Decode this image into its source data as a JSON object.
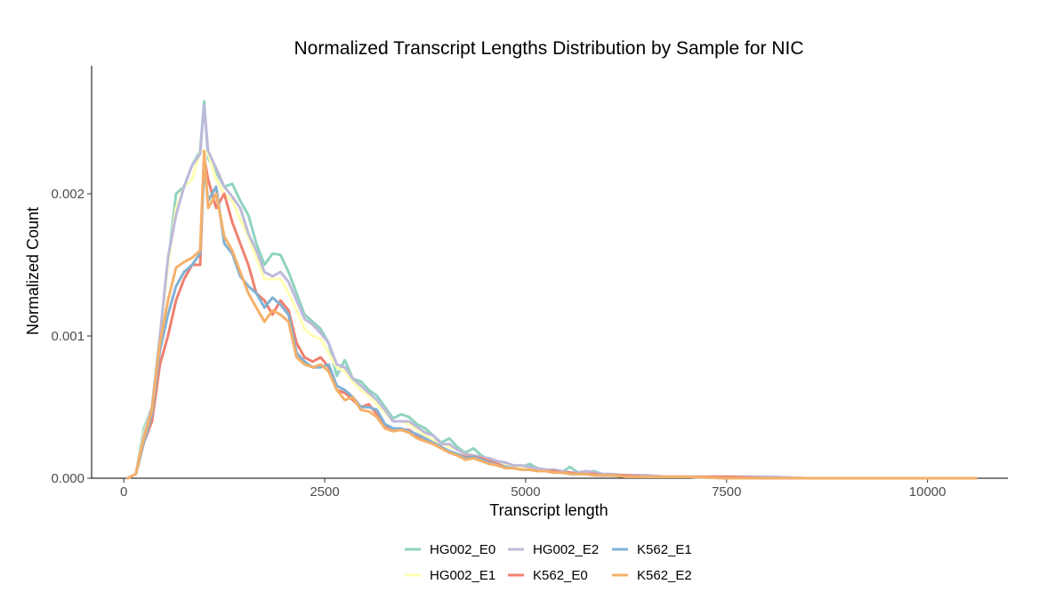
{
  "chart_data": {
    "type": "line",
    "title": "Normalized Transcript Lengths Distribution by Sample for NIC",
    "xlabel": "Transcript length",
    "ylabel": "Normalized Count",
    "xlim": [
      -400,
      11000
    ],
    "ylim": [
      0,
      0.0029
    ],
    "x_ticks": [
      0,
      2500,
      5000,
      7500,
      10000
    ],
    "x_tick_labels": [
      "0",
      "2500",
      "5000",
      "7500",
      "10000"
    ],
    "y_ticks": [
      0,
      0.001,
      0.002
    ],
    "y_tick_labels": [
      "0.000",
      "0.001",
      "0.002"
    ],
    "grid": false,
    "legend_position": "bottom",
    "x": [
      50,
      150,
      250,
      350,
      450,
      550,
      650,
      750,
      850,
      950,
      1000,
      1050,
      1150,
      1250,
      1350,
      1450,
      1550,
      1650,
      1750,
      1850,
      1950,
      2050,
      2150,
      2250,
      2350,
      2450,
      2550,
      2650,
      2750,
      2850,
      2950,
      3050,
      3150,
      3250,
      3350,
      3450,
      3550,
      3650,
      3750,
      3850,
      3950,
      4050,
      4150,
      4250,
      4350,
      4450,
      4550,
      4650,
      4750,
      4850,
      4950,
      5050,
      5150,
      5250,
      5350,
      5450,
      5550,
      5650,
      5750,
      5850,
      5950,
      6050,
      6250,
      6500,
      6750,
      7000,
      7500,
      8000,
      8500,
      9000,
      9500,
      10000,
      10600
    ],
    "series": [
      {
        "name": "HG002_E0",
        "color": "#8fd3c0",
        "values": [
          0,
          3e-05,
          0.00035,
          0.0005,
          0.001,
          0.0015,
          0.002,
          0.00205,
          0.0022,
          0.0023,
          0.00265,
          0.00225,
          0.00215,
          0.00205,
          0.00207,
          0.00195,
          0.00185,
          0.00165,
          0.0015,
          0.00158,
          0.00157,
          0.00145,
          0.0013,
          0.00115,
          0.0011,
          0.00105,
          0.00095,
          0.00072,
          0.00083,
          0.0007,
          0.00068,
          0.00062,
          0.00058,
          0.0005,
          0.00042,
          0.00045,
          0.00043,
          0.00038,
          0.00035,
          0.0003,
          0.00025,
          0.00028,
          0.00022,
          0.00018,
          0.00021,
          0.00016,
          0.00013,
          0.00012,
          0.0001,
          8e-05,
          8e-05,
          0.0001,
          7e-05,
          6e-05,
          5e-05,
          4e-05,
          8e-05,
          4e-05,
          4e-05,
          5e-05,
          3e-05,
          2e-05,
          2e-05,
          2e-05,
          1e-05,
          1e-05,
          1e-05,
          1e-05,
          0,
          0,
          0,
          0,
          0
        ]
      },
      {
        "name": "HG002_E1",
        "color": "#ffffb3",
        "values": [
          0,
          3e-05,
          0.00032,
          0.0005,
          0.001,
          0.0015,
          0.0019,
          0.00205,
          0.0021,
          0.0023,
          0.0023,
          0.00228,
          0.0021,
          0.002,
          0.00195,
          0.00182,
          0.0017,
          0.00155,
          0.0014,
          0.0014,
          0.0014,
          0.0013,
          0.00118,
          0.00105,
          0.001,
          0.00098,
          0.00088,
          0.00078,
          0.00075,
          0.00068,
          0.00062,
          0.00058,
          0.00052,
          0.00046,
          0.0004,
          0.0004,
          0.00038,
          0.00034,
          0.0003,
          0.00027,
          0.00024,
          0.00022,
          0.0002,
          0.00017,
          0.00016,
          0.00014,
          0.00012,
          0.0001,
          9e-05,
          8e-05,
          7e-05,
          6e-05,
          6e-05,
          5e-05,
          5e-05,
          4e-05,
          4e-05,
          3e-05,
          3e-05,
          3e-05,
          2e-05,
          2e-05,
          2e-05,
          1e-05,
          1e-05,
          1e-05,
          1e-05,
          0,
          0,
          0,
          0,
          0,
          0
        ]
      },
      {
        "name": "HG002_E2",
        "color": "#bebada",
        "values": [
          0,
          3e-05,
          0.0003,
          0.0005,
          0.001,
          0.00155,
          0.00185,
          0.00205,
          0.0022,
          0.00228,
          0.00262,
          0.0023,
          0.00218,
          0.00205,
          0.00198,
          0.0019,
          0.00172,
          0.0016,
          0.00145,
          0.00142,
          0.00145,
          0.00138,
          0.00125,
          0.00112,
          0.00108,
          0.00102,
          0.00095,
          0.0008,
          0.00078,
          0.0007,
          0.00065,
          0.0006,
          0.00055,
          0.00048,
          0.0004,
          0.0004,
          0.0004,
          0.00036,
          0.00032,
          0.0003,
          0.00024,
          0.00024,
          0.0002,
          0.00017,
          0.00016,
          0.00015,
          0.00014,
          0.00012,
          0.00011,
          9e-05,
          9e-05,
          8e-05,
          7e-05,
          6e-05,
          6e-05,
          5e-05,
          4e-05,
          4e-05,
          5e-05,
          4e-05,
          3e-05,
          3e-05,
          2e-05,
          2e-05,
          1e-05,
          1e-05,
          1e-05,
          1e-05,
          0,
          0,
          0,
          0,
          0
        ]
      },
      {
        "name": "K562_E0",
        "color": "#f08070",
        "values": [
          0,
          3e-05,
          0.00025,
          0.0004,
          0.0008,
          0.001,
          0.00125,
          0.0014,
          0.0015,
          0.0015,
          0.00225,
          0.0021,
          0.0019,
          0.002,
          0.0018,
          0.00165,
          0.0015,
          0.0013,
          0.00125,
          0.00115,
          0.00125,
          0.00118,
          0.00095,
          0.00085,
          0.00082,
          0.00085,
          0.00078,
          0.00062,
          0.0006,
          0.00055,
          0.0005,
          0.00052,
          0.00045,
          0.00036,
          0.00034,
          0.00034,
          0.00034,
          0.0003,
          0.00027,
          0.00025,
          0.00022,
          0.00018,
          0.00017,
          0.00015,
          0.00015,
          0.00014,
          0.00012,
          0.0001,
          8e-05,
          7e-05,
          6e-05,
          6e-05,
          5e-05,
          5e-05,
          5e-05,
          4e-05,
          4e-05,
          3e-05,
          3e-05,
          3e-05,
          2e-05,
          2e-05,
          2e-05,
          1e-05,
          1e-05,
          1e-05,
          1e-05,
          0,
          0,
          0,
          0,
          0,
          0
        ]
      },
      {
        "name": "K562_E1",
        "color": "#80b1d3",
        "values": [
          0,
          3e-05,
          0.00025,
          0.00045,
          0.0009,
          0.00115,
          0.00135,
          0.00145,
          0.0015,
          0.00158,
          0.0022,
          0.00195,
          0.00205,
          0.00165,
          0.00158,
          0.00142,
          0.00135,
          0.0013,
          0.0012,
          0.00127,
          0.00122,
          0.00115,
          0.00088,
          0.00082,
          0.00078,
          0.00078,
          0.0008,
          0.00065,
          0.00062,
          0.00057,
          0.0005,
          0.0005,
          0.00048,
          0.00038,
          0.00035,
          0.00035,
          0.00033,
          0.00031,
          0.00028,
          0.00025,
          0.00022,
          0.00019,
          0.00017,
          0.00014,
          0.00015,
          0.00013,
          0.00011,
          9e-05,
          8e-05,
          7e-05,
          6e-05,
          6e-05,
          5e-05,
          5e-05,
          4e-05,
          4e-05,
          3e-05,
          3e-05,
          3e-05,
          2e-05,
          2e-05,
          2e-05,
          1e-05,
          1e-05,
          1e-05,
          1e-05,
          0,
          0,
          0,
          0,
          0,
          0,
          0
        ]
      },
      {
        "name": "K562_E2",
        "color": "#f4b06a",
        "values": [
          0,
          3e-05,
          0.00028,
          0.00048,
          0.00095,
          0.00125,
          0.00148,
          0.00152,
          0.00155,
          0.0016,
          0.0023,
          0.0019,
          0.002,
          0.0017,
          0.0016,
          0.00145,
          0.0013,
          0.0012,
          0.0011,
          0.00118,
          0.00115,
          0.0011,
          0.00085,
          0.0008,
          0.00078,
          0.0008,
          0.00075,
          0.00062,
          0.00055,
          0.00057,
          0.00048,
          0.00047,
          0.00043,
          0.00035,
          0.00033,
          0.00034,
          0.00032,
          0.00028,
          0.00026,
          0.00024,
          0.00021,
          0.00018,
          0.00016,
          0.00013,
          0.00014,
          0.00012,
          0.0001,
          9e-05,
          7e-05,
          7e-05,
          6e-05,
          6e-05,
          5e-05,
          5e-05,
          4e-05,
          4e-05,
          3e-05,
          3e-05,
          3e-05,
          2e-05,
          2e-05,
          2e-05,
          1e-05,
          1e-05,
          1e-05,
          1e-05,
          0,
          0,
          0,
          0,
          0,
          0,
          0
        ]
      }
    ],
    "legend_rows": [
      [
        "HG002_E0",
        "HG002_E2",
        "K562_E1"
      ],
      [
        "HG002_E1",
        "K562_E0",
        "K562_E2"
      ]
    ]
  }
}
